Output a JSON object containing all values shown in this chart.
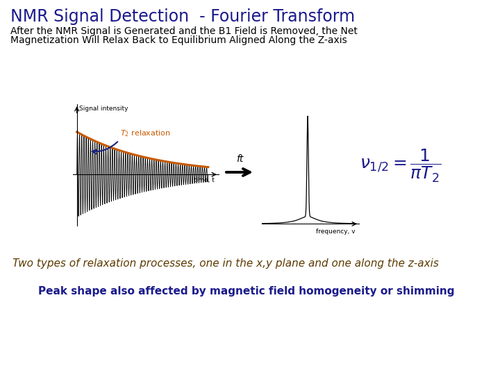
{
  "title": "NMR Signal Detection  - Fourier Transform",
  "title_color": "#1a1a8c",
  "title_fontsize": 17,
  "subtitle_line1": "After the NMR Signal is Generated and the B1 Field is Removed, the Net",
  "subtitle_line2": "Magnetization Will Relax Back to Equilibrium Aligned Along the Z-axis",
  "subtitle_color": "#000000",
  "subtitle_fontsize": 10,
  "italic_text": "Two types of relaxation processes, one in the x,y plane and one along the z-axis",
  "italic_color": "#5c3a00",
  "italic_fontsize": 11,
  "bold_text": "Peak shape also affected by magnetic field homogeneity or shimming",
  "bold_color": "#1a1a8c",
  "bold_fontsize": 11,
  "t2_color": "#c85a00",
  "equation_color": "#1a1a8c",
  "background_color": "#ffffff",
  "fid_decay": 0.35,
  "fid_freq": 12.0,
  "arrow_color": "#1a237e",
  "envelope_color": "#c85a00",
  "signal_color": "#000000"
}
